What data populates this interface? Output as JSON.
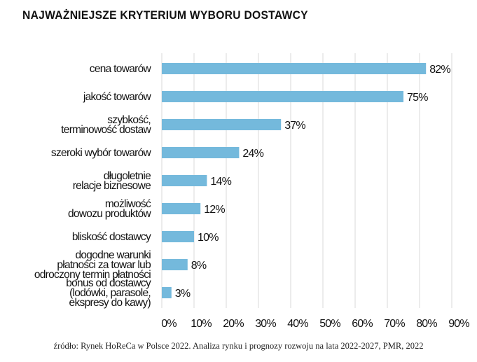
{
  "chart_data": {
    "type": "bar",
    "orientation": "horizontal",
    "title": "NAJWAŻNIEJSZE KRYTERIUM WYBORU DOSTAWCY",
    "categories": [
      [
        "cena towarów"
      ],
      [
        "jakość towarów"
      ],
      [
        "szybkość,",
        "terminowość dostaw"
      ],
      [
        "szeroki wybór towarów"
      ],
      [
        "długoletnie",
        "relacje biznesowe"
      ],
      [
        "możliwość",
        "dowozu produktów"
      ],
      [
        "bliskość dostawcy"
      ],
      [
        "dogodne warunki",
        "płatności za towar lub",
        "odroczony termin płatności"
      ],
      [
        "bonus od dostawcy",
        "(lodówki, parasole,",
        "ekspresy do kawy)"
      ]
    ],
    "values": [
      82,
      75,
      37,
      24,
      14,
      12,
      10,
      8,
      3
    ],
    "value_labels": [
      "82%",
      "75%",
      "37%",
      "24%",
      "14%",
      "12%",
      "10%",
      "8%",
      "3%"
    ],
    "xlim": [
      0,
      90
    ],
    "x_ticks": [
      "0%",
      "10%",
      "20%",
      "30%",
      "40%",
      "50%",
      "60%",
      "70%",
      "80%",
      "90%"
    ],
    "grid": true,
    "bar_color": "#74b9dc",
    "grid_color": "#d9d9d9"
  },
  "source": "źródło: Rynek HoReCa w Polsce 2022. Analiza rynku i prognozy rozwoju na lata 2022-2027, PMR, 2022"
}
